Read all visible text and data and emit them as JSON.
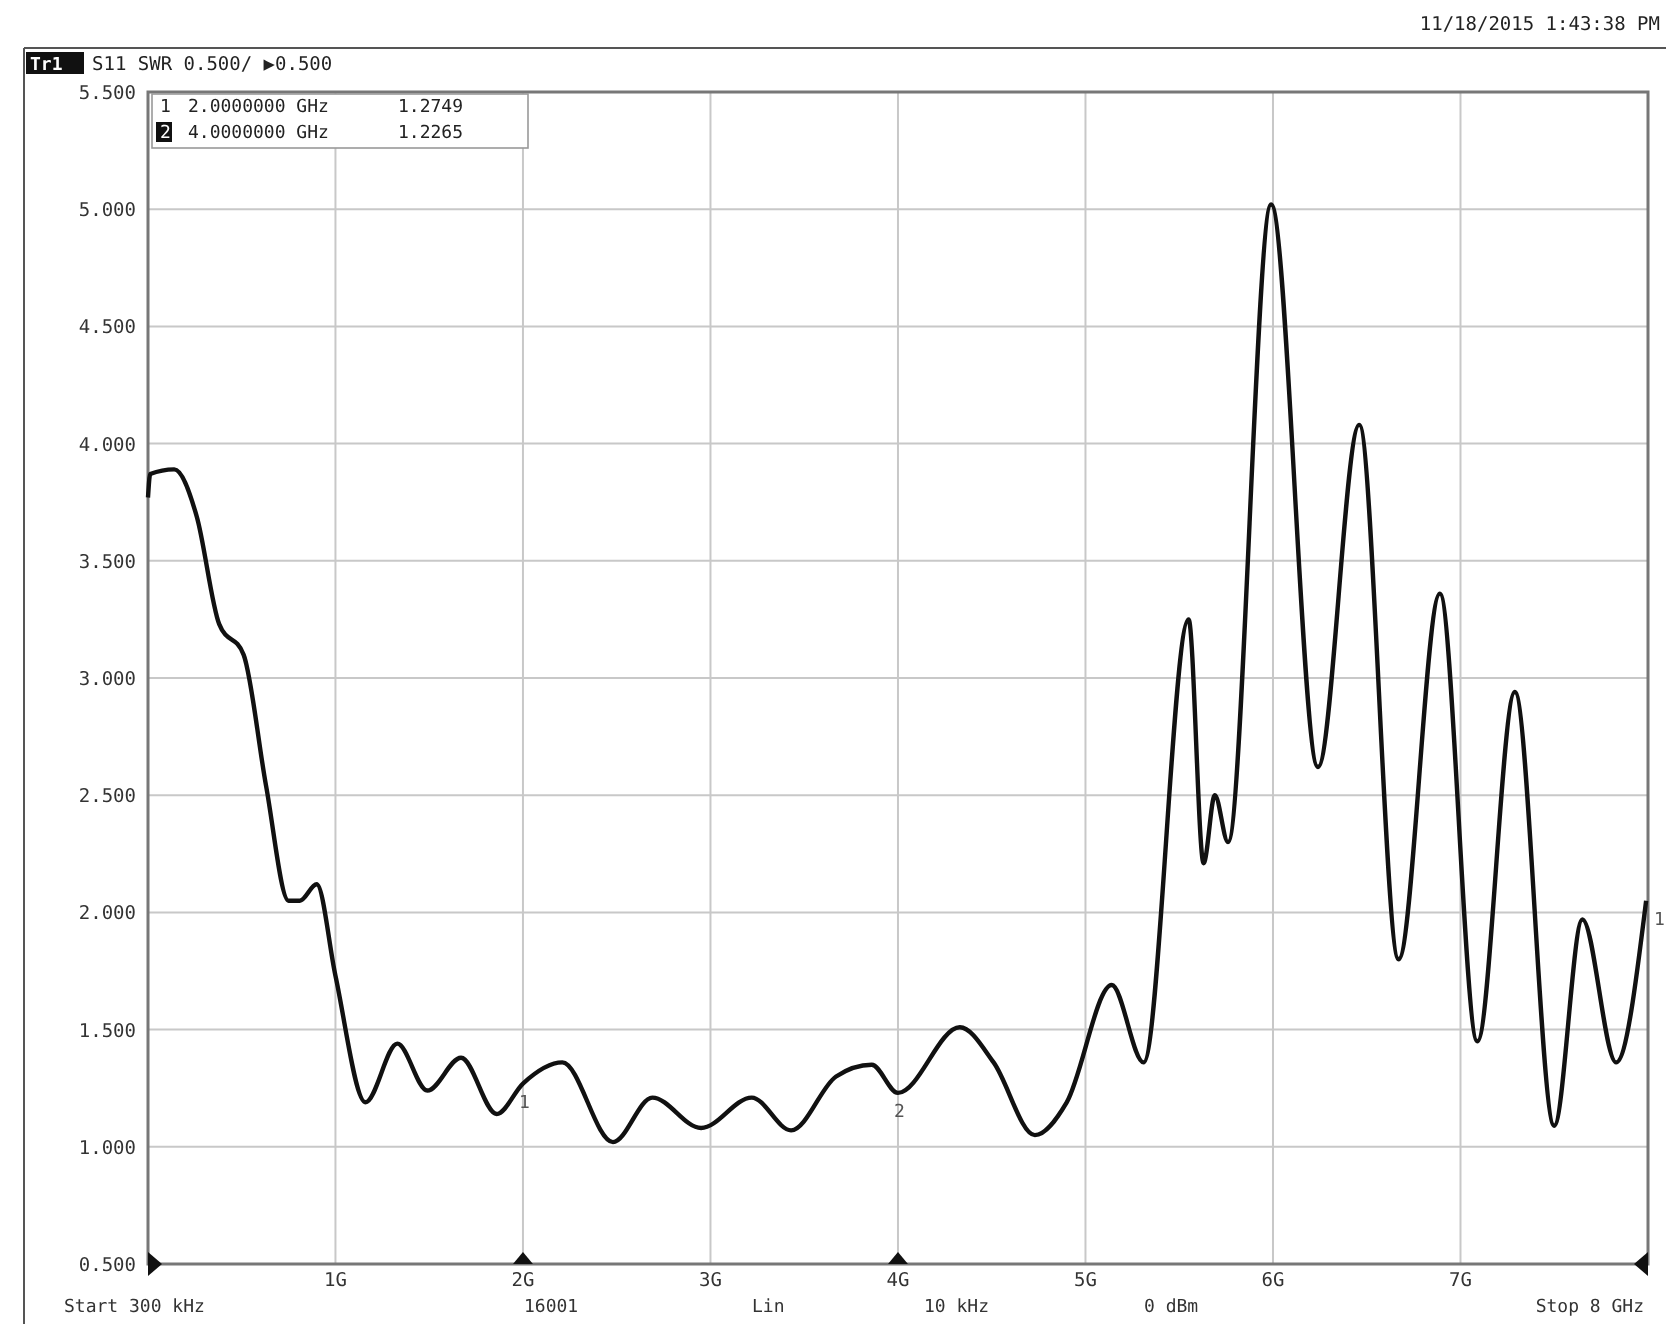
{
  "chart_data": {
    "type": "line",
    "title": "S11 SWR 0.500/ ▶0.500",
    "annotations": [
      "Tr1",
      "11/18/2015 1:43:38 PM",
      "1",
      "2.0000000 GHz",
      "1.2749",
      "2",
      "4.0000000 GHz",
      "1.2265",
      "Start 300 kHz",
      "16001",
      "Lin",
      "10 kHz",
      "0 dBm",
      "Stop 8 GHz",
      {
        "text": "1",
        "x": 2,
        "y": 1.27
      },
      {
        "text": "2",
        "x": 4,
        "y": 1.23
      },
      {
        "text": "1",
        "x": 8,
        "y": 2.05
      }
    ],
    "xlim": [
      0.0003,
      8
    ],
    "xticks": [
      {
        "value": 1,
        "label": "1G"
      },
      {
        "value": 2,
        "label": "2G"
      },
      {
        "value": 3,
        "label": "3G"
      },
      {
        "value": 4,
        "label": "4G"
      },
      {
        "value": 5,
        "label": "5G"
      },
      {
        "value": 6,
        "label": "6G"
      },
      {
        "value": 7,
        "label": "7G"
      }
    ],
    "ylim": [
      0.5,
      5.5
    ],
    "yticks": [
      {
        "value": 0.5,
        "label": "0.500"
      },
      {
        "value": 1,
        "label": "1.000"
      },
      {
        "value": 1.5,
        "label": "1.500"
      },
      {
        "value": 2,
        "label": "2.000"
      },
      {
        "value": 2.5,
        "label": "2.500"
      },
      {
        "value": 3,
        "label": "3.000"
      },
      {
        "value": 3.5,
        "label": "3.500"
      },
      {
        "value": 4,
        "label": "4.000"
      },
      {
        "value": 4.5,
        "label": "4.500"
      },
      {
        "value": 5,
        "label": "5.000"
      },
      {
        "value": 5.5,
        "label": "5.500"
      }
    ],
    "grid": true,
    "marker": "none",
    "line_style": "solid",
    "series": [
      {
        "color": "#111111",
        "x": [
          0.0003,
          0.012,
          0.14,
          0.26,
          0.38,
          0.51,
          0.63,
          0.75,
          0.81,
          0.9,
          1.0,
          1.16,
          1.33,
          1.49,
          1.67,
          1.86,
          2.0,
          2.21,
          2.48,
          2.69,
          2.95,
          3.22,
          3.43,
          3.67,
          3.86,
          4.0,
          4.33,
          4.51,
          4.73,
          4.9,
          5.14,
          5.31,
          5.55,
          5.63,
          5.69,
          5.76,
          5.99,
          6.24,
          6.46,
          6.67,
          6.89,
          7.09,
          7.29,
          7.5,
          7.65,
          7.83,
          7.99
        ],
        "values": [
          3.77,
          3.87,
          3.89,
          3.69,
          3.23,
          3.1,
          2.54,
          2.05,
          2.05,
          2.12,
          1.73,
          1.19,
          1.44,
          1.24,
          1.38,
          1.14,
          1.27,
          1.36,
          1.02,
          1.21,
          1.08,
          1.21,
          1.07,
          1.3,
          1.35,
          1.23,
          1.51,
          1.36,
          1.05,
          1.19,
          1.69,
          1.36,
          3.25,
          2.21,
          2.5,
          2.3,
          5.02,
          2.62,
          4.08,
          1.8,
          3.36,
          1.45,
          2.94,
          1.09,
          1.97,
          1.36,
          2.05
        ]
      }
    ]
  }
}
